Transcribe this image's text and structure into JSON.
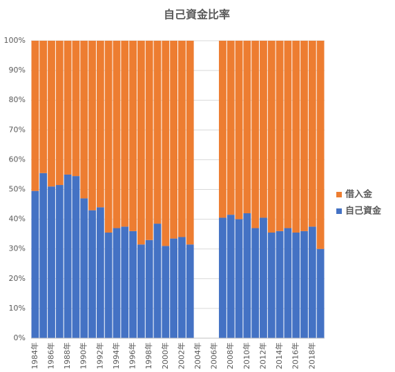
{
  "chart_data": {
    "type": "stacked_bar_100",
    "title": "自己資金比率",
    "categories": [
      "1984年",
      null,
      "1986年",
      null,
      "1988年",
      null,
      "1990年",
      null,
      "1992年",
      null,
      "1994年",
      null,
      "1996年",
      null,
      "1998年",
      null,
      "2000年",
      null,
      "2002年",
      null,
      "2004年",
      null,
      "2006年",
      null,
      "2008年",
      null,
      "2010年",
      null,
      "2012年",
      null,
      "2014年",
      null,
      "2016年",
      null,
      "2018年",
      null
    ],
    "series": [
      {
        "name": "自己資金",
        "color": "#4472c4",
        "values": [
          49.5,
          55.5,
          51,
          51.5,
          55,
          54.5,
          47,
          43,
          44,
          35.5,
          37,
          37.5,
          36,
          31.5,
          33,
          38.5,
          31,
          33.5,
          34,
          31.5,
          null,
          null,
          null,
          40.5,
          41.5,
          40,
          42,
          37,
          40.5,
          35.5,
          36,
          37,
          35.5,
          36,
          37.5,
          30
        ]
      },
      {
        "name": "借入金",
        "color": "#ed7d31",
        "values": [
          50.5,
          44.5,
          49,
          48.5,
          45,
          45.5,
          53,
          57,
          56,
          64.5,
          63,
          62.5,
          64,
          68.5,
          67,
          61.5,
          69,
          66.5,
          66,
          68.5,
          null,
          null,
          null,
          59.5,
          58.5,
          60,
          58,
          63,
          59.5,
          64.5,
          64,
          63,
          64.5,
          64,
          62.5,
          70
        ]
      }
    ],
    "ylim": [
      0,
      100
    ],
    "yticks": [
      {
        "value": 0,
        "label": "0%"
      },
      {
        "value": 10,
        "label": "10%"
      },
      {
        "value": 20,
        "label": "20%"
      },
      {
        "value": 30,
        "label": "30%"
      },
      {
        "value": 40,
        "label": "40%"
      },
      {
        "value": 50,
        "label": "50%"
      },
      {
        "value": 60,
        "label": "60%"
      },
      {
        "value": 70,
        "label": "70%"
      },
      {
        "value": 80,
        "label": "80%"
      },
      {
        "value": 90,
        "label": "90%"
      },
      {
        "value": 100,
        "label": "100%"
      }
    ],
    "grid": true,
    "legend": "right"
  }
}
